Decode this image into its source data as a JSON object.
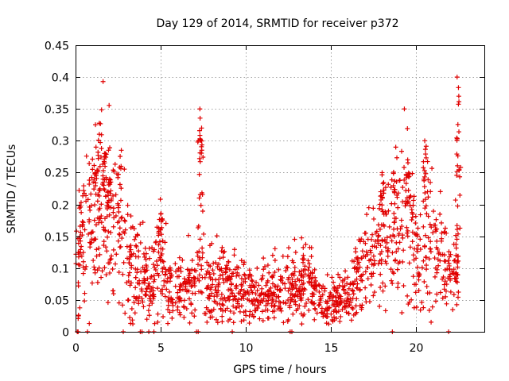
{
  "chart_data": {
    "type": "scatter",
    "title": "Day 129 of 2014, SRMTID for receiver p372",
    "xlabel": "GPS time / hours",
    "ylabel": "SRMTID / TECUs",
    "xlim": [
      0,
      24
    ],
    "ylim": [
      0,
      0.45
    ],
    "x_ticks": [
      0,
      5,
      10,
      15,
      20
    ],
    "x_tick_labels": [
      "0",
      "5",
      "10",
      "15",
      "20"
    ],
    "y_ticks": [
      0,
      0.05,
      0.1,
      0.15,
      0.2,
      0.25,
      0.3,
      0.35,
      0.4,
      0.45
    ],
    "y_tick_labels": [
      "0",
      "0.05",
      "0.1",
      "0.15",
      "0.2",
      "0.25",
      "0.3",
      "0.35",
      "0.4",
      "0.45"
    ],
    "grid": true,
    "marker": "+",
    "color": "#e00000",
    "series": [
      {
        "name": "SRMTID",
        "profile_x": [
          0.0,
          0.3,
          0.7,
          1.0,
          1.4,
          1.8,
          2.2,
          2.6,
          3.0,
          3.5,
          4.0,
          4.5,
          5.0,
          5.5,
          6.0,
          6.5,
          7.0,
          7.4,
          7.8,
          8.5,
          9.5,
          10.5,
          11.5,
          12.5,
          13.5,
          14.5,
          15.5,
          16.0,
          16.5,
          17.0,
          17.5,
          18.0,
          18.5,
          19.0,
          19.5,
          20.0,
          20.5,
          21.0,
          21.5,
          22.0,
          22.5
        ],
        "profile_y": [
          0.12,
          0.15,
          0.16,
          0.18,
          0.21,
          0.2,
          0.19,
          0.17,
          0.12,
          0.1,
          0.09,
          0.07,
          0.12,
          0.06,
          0.06,
          0.07,
          0.08,
          0.09,
          0.07,
          0.08,
          0.07,
          0.05,
          0.06,
          0.07,
          0.07,
          0.05,
          0.05,
          0.06,
          0.08,
          0.1,
          0.11,
          0.15,
          0.14,
          0.15,
          0.19,
          0.12,
          0.17,
          0.14,
          0.11,
          0.09,
          0.08
        ],
        "spikes": [
          {
            "x": 1.2,
            "y": 0.29
          },
          {
            "x": 1.7,
            "y": 0.28
          },
          {
            "x": 2.0,
            "y": 0.24
          },
          {
            "x": 5.0,
            "y": 0.185
          },
          {
            "x": 7.3,
            "y": 0.35
          },
          {
            "x": 7.4,
            "y": 0.32
          },
          {
            "x": 18.0,
            "y": 0.25
          },
          {
            "x": 18.8,
            "y": 0.29
          },
          {
            "x": 19.5,
            "y": 0.27
          },
          {
            "x": 20.5,
            "y": 0.3
          },
          {
            "x": 22.4,
            "y": 0.4
          },
          {
            "x": 22.5,
            "y": 0.37
          }
        ],
        "zero_x": [
          0.1,
          0.15,
          0.7,
          2.8,
          3.8,
          3.9,
          4.3,
          4.6,
          7.1,
          7.2,
          9.2,
          12.6,
          12.7,
          18.6,
          21.9
        ],
        "n_points": 1500
      }
    ]
  }
}
